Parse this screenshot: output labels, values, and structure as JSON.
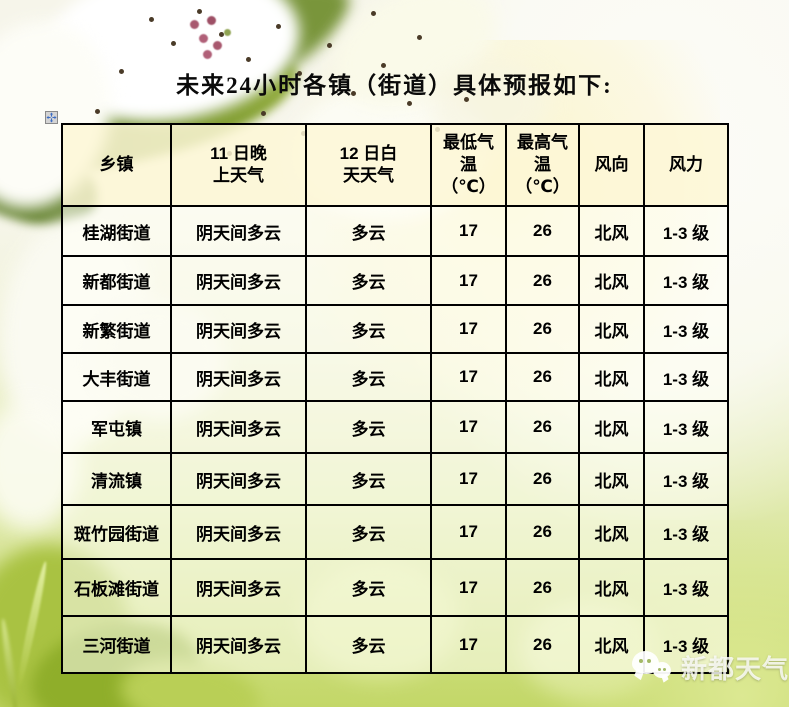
{
  "title": "未来24小时各镇（街道）具体预报如下:",
  "table": {
    "columns": [
      "乡镇",
      "11 日晚\n上天气",
      "12 日白\n天天气",
      "最低气\n温\n（℃）",
      "最高气\n温\n（℃）",
      "风向",
      "风力"
    ],
    "rows": [
      [
        "桂湖街道",
        "阴天间多云",
        "多云",
        "17",
        "26",
        "北风",
        "1-3 级"
      ],
      [
        "新都街道",
        "阴天间多云",
        "多云",
        "17",
        "26",
        "北风",
        "1-3 级"
      ],
      [
        "新繁街道",
        "阴天间多云",
        "多云",
        "17",
        "26",
        "北风",
        "1-3 级"
      ],
      [
        "大丰街道",
        "阴天间多云",
        "多云",
        "17",
        "26",
        "北风",
        "1-3 级"
      ],
      [
        "军屯镇",
        "阴天间多云",
        "多云",
        "17",
        "26",
        "北风",
        "1-3 级"
      ],
      [
        "清流镇",
        "阴天间多云",
        "多云",
        "17",
        "26",
        "北风",
        "1-3 级"
      ],
      [
        "斑竹园街道",
        "阴天间多云",
        "多云",
        "17",
        "26",
        "北风",
        "1-3 级"
      ],
      [
        "石板滩街道",
        "阴天间多云",
        "多云",
        "17",
        "26",
        "北风",
        "1-3 级"
      ],
      [
        "三河街道",
        "阴天间多云",
        "多云",
        "17",
        "26",
        "北风",
        "1-3 级"
      ]
    ]
  },
  "watermark": {
    "text": "新都天气"
  },
  "icons": {
    "table_move_handle": "move-cross-arrows",
    "watermark_logo": "wechat-speech-bubbles"
  },
  "colors": {
    "table_border": "#000000",
    "header_fill": "#fcf6d6",
    "watermark_text": "#ffffff",
    "move_handle_arrows": "#3c6cc3"
  }
}
